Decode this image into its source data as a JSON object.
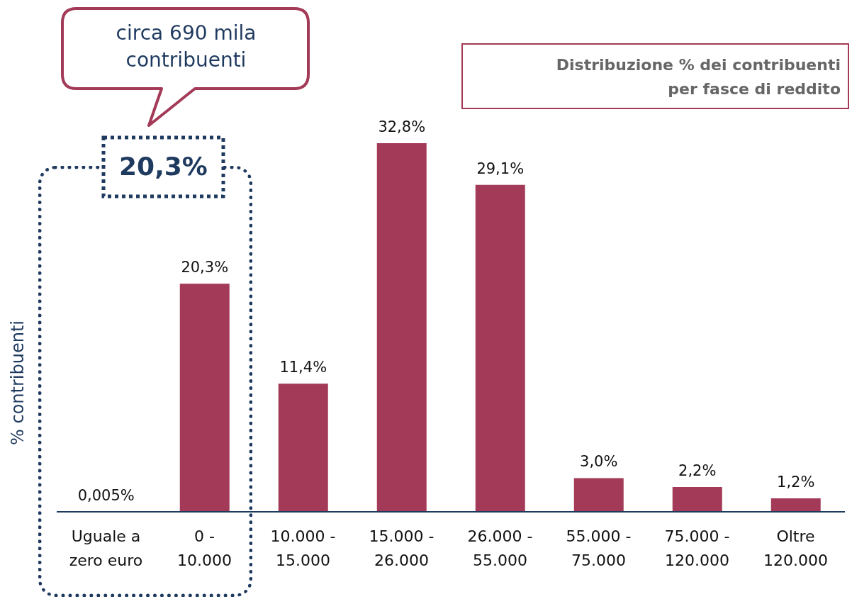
{
  "chart_data": {
    "type": "bar",
    "title": "Distribuzione % dei contribuenti per fasce di reddito",
    "ylabel": "% contribuenti",
    "categories": [
      "Uguale a zero euro",
      "0 - 10.000",
      "10.000 - 15.000",
      "15.000 - 26.000",
      "26.000 - 55.000",
      "55.000 - 75.000",
      "75.000 - 120.000",
      "Oltre 120.000"
    ],
    "values": [
      0.005,
      20.3,
      11.4,
      32.8,
      29.1,
      3.0,
      2.2,
      1.2
    ],
    "value_labels": [
      "0,005%",
      "20,3%",
      "11,4%",
      "32,8%",
      "29,1%",
      "3,0%",
      "2,2%",
      "1,2%"
    ],
    "color": "#a33a57",
    "annotations": [
      "circa 690 mila contribuenti",
      "20,3%"
    ],
    "grid": false,
    "legend": false
  }
}
